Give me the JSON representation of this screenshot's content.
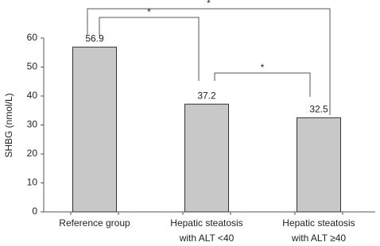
{
  "chart_data": {
    "type": "bar",
    "y_label": "SHBG (nmol/L)",
    "categories": [
      "Reference group",
      "Hepatic steatosis\nwith ALT <40",
      "Hepatic steatosis\nwith ALT ≥40"
    ],
    "values": [
      56.9,
      37.2,
      32.5
    ],
    "color": "#c8c8c8",
    "ylim": [
      0,
      60
    ],
    "yticks": [
      0,
      10,
      20,
      30,
      40,
      50,
      60
    ],
    "comparisons": [
      {
        "from": 0,
        "to": 2,
        "label": "*"
      },
      {
        "from": 0,
        "to": 1,
        "label": "*"
      },
      {
        "from": 1,
        "to": 2,
        "label": "*"
      }
    ]
  }
}
